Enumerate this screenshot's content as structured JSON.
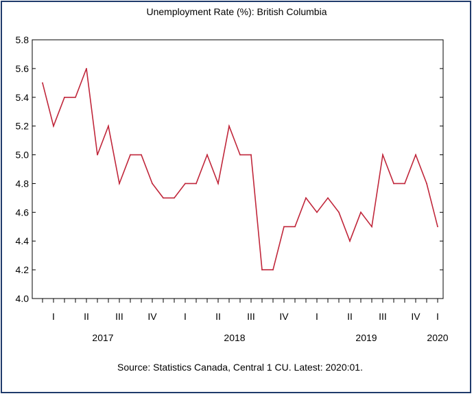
{
  "chart_data": {
    "type": "line",
    "title": "Unemployment Rate (%): British Columbia",
    "source": "Source: Statistics Canada, Central 1 CU. Latest: 2020:01.",
    "x": [
      "2017-01",
      "2017-02",
      "2017-03",
      "2017-04",
      "2017-05",
      "2017-06",
      "2017-07",
      "2017-08",
      "2017-09",
      "2017-10",
      "2017-11",
      "2017-12",
      "2018-01",
      "2018-02",
      "2018-03",
      "2018-04",
      "2018-05",
      "2018-06",
      "2018-07",
      "2018-08",
      "2018-09",
      "2018-10",
      "2018-11",
      "2018-12",
      "2019-01",
      "2019-02",
      "2019-03",
      "2019-04",
      "2019-05",
      "2019-06",
      "2019-07",
      "2019-08",
      "2019-09",
      "2019-10",
      "2019-11",
      "2019-12",
      "2020-01"
    ],
    "series": [
      {
        "values": [
          5.5,
          5.2,
          5.4,
          5.4,
          5.6,
          5.0,
          5.2,
          4.8,
          5.0,
          5.0,
          4.8,
          4.7,
          4.7,
          4.8,
          4.8,
          5.0,
          4.8,
          5.2,
          5.0,
          5.0,
          4.2,
          4.2,
          4.5,
          4.5,
          4.7,
          4.6,
          4.7,
          4.6,
          4.4,
          4.6,
          4.5,
          5.0,
          4.8,
          4.8,
          5.0,
          4.8,
          4.5
        ],
        "color": "#c0263a"
      }
    ],
    "ylim": [
      4.0,
      5.8
    ],
    "yticks": [
      "4.0",
      "4.2",
      "4.4",
      "4.6",
      "4.8",
      "5.0",
      "5.2",
      "5.4",
      "5.6",
      "5.8"
    ],
    "quarter_labels": [
      "I",
      "II",
      "III",
      "IV",
      "I",
      "II",
      "III",
      "IV",
      "I",
      "II",
      "III",
      "IV",
      "I"
    ],
    "year_labels": [
      "2017",
      "2018",
      "2019",
      "2020"
    ],
    "grid": false,
    "legend": "none"
  }
}
